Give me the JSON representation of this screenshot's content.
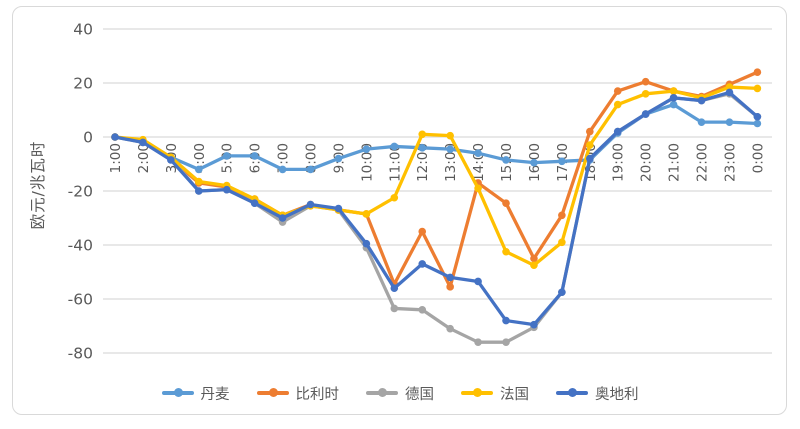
{
  "colors": {
    "background": "#FFFFFF",
    "card_border": "#D9D9D9",
    "gridline": "#D9D9D9",
    "axis_text": "#595959"
  },
  "chart_data": {
    "type": "line",
    "title": "",
    "xlabel": "",
    "ylabel": "欧元/兆瓦时",
    "ylim": [
      -80,
      40
    ],
    "yticks": [
      40,
      20,
      0,
      -20,
      -40,
      -60,
      -80
    ],
    "grid": "horizontal",
    "legend_position": "bottom",
    "marker": "circle",
    "categories": [
      "1:00",
      "2:00",
      "3:00",
      "4:00",
      "5:00",
      "6:00",
      "7:00",
      "8:00",
      "9:00",
      "10:00",
      "11:00",
      "12:00",
      "13:00",
      "14:00",
      "15:00",
      "16:00",
      "17:00",
      "18:00",
      "19:00",
      "20:00",
      "21:00",
      "22:00",
      "23:00",
      "0:00"
    ],
    "series": [
      {
        "id": "denmark",
        "name": "丹麦",
        "color": "#5B9BD5",
        "values": [
          0,
          -1.5,
          -7.5,
          -12,
          -7,
          -7,
          -12,
          -12,
          -8,
          -4.5,
          -3.5,
          -4,
          -4.5,
          -6,
          -8.5,
          -9.5,
          -9,
          -8.5,
          1.5,
          8.5,
          12,
          5.5,
          5.5,
          5
        ]
      },
      {
        "id": "belgium",
        "name": "比利时",
        "color": "#ED7D31",
        "values": [
          0,
          -1.5,
          -8,
          -17,
          -18.5,
          -23,
          -29,
          -25,
          -27,
          -28.5,
          -54.5,
          -35,
          -55.5,
          -17,
          -24.5,
          -45,
          -29,
          2,
          17,
          20.5,
          17,
          15,
          19.5,
          24
        ]
      },
      {
        "id": "germany",
        "name": "德国",
        "color": "#A5A5A5",
        "values": [
          0,
          -2,
          -8,
          -20,
          -19.5,
          -24.5,
          -31.5,
          -25.5,
          -27,
          -41,
          -63.5,
          -64,
          -71,
          -76,
          -76,
          -70.5,
          -57.5,
          -8,
          2,
          8.5,
          14.5,
          13.5,
          16,
          7.5
        ]
      },
      {
        "id": "france",
        "name": "法国",
        "color": "#FFC000",
        "values": [
          0,
          -1,
          -7.5,
          -16.5,
          -18,
          -23,
          -29,
          -25.5,
          -27,
          -28.5,
          -22.5,
          1,
          0.5,
          -19,
          -42.5,
          -47.5,
          -39,
          -3,
          12,
          16,
          17,
          14.5,
          18.5,
          18
        ]
      },
      {
        "id": "austria",
        "name": "奥地利",
        "color": "#4472C4",
        "values": [
          0,
          -2,
          -8.5,
          -20,
          -19.5,
          -24.5,
          -30,
          -25,
          -26.5,
          -39.5,
          -56,
          -47,
          -52,
          -53.5,
          -68,
          -69.5,
          -57.5,
          -8,
          2,
          8.5,
          14.5,
          13.5,
          16.5,
          7.5
        ]
      }
    ]
  }
}
